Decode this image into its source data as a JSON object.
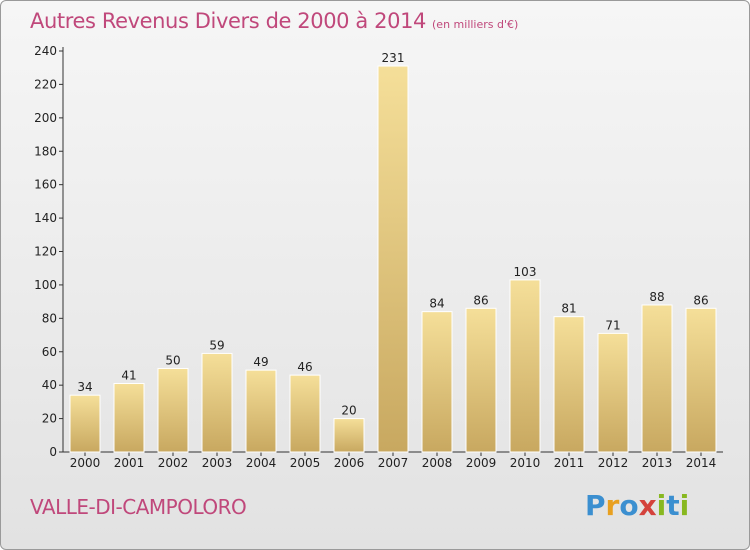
{
  "title": "Autres Revenus Divers de 2000 à 2014",
  "subtitle": "(en milliers d'€)",
  "place": "VALLE-DI-CAMPOLORO",
  "logo": {
    "letters": [
      "P",
      "r",
      "o",
      "x",
      "i",
      "t",
      "i"
    ],
    "colors": [
      "#3b8fd0",
      "#e8a020",
      "#3b8fd0",
      "#d4423c",
      "#88b820",
      "#3b8fd0",
      "#88b820"
    ]
  },
  "colors": {
    "accent": "#c0487b",
    "bar_light": "#f5df99",
    "bar_dark": "#c8a860"
  },
  "chart_data": {
    "type": "bar",
    "title": "Autres Revenus Divers de 2000 à 2014",
    "categories": [
      "2000",
      "2001",
      "2002",
      "2003",
      "2004",
      "2005",
      "2006",
      "2007",
      "2008",
      "2009",
      "2010",
      "2011",
      "2012",
      "2013",
      "2014"
    ],
    "values": [
      34,
      41,
      50,
      59,
      49,
      46,
      20,
      231,
      84,
      86,
      103,
      81,
      71,
      88,
      86
    ],
    "ylim": [
      0,
      240
    ],
    "yticks": [
      0,
      20,
      40,
      60,
      80,
      100,
      120,
      140,
      160,
      180,
      200,
      220,
      240
    ],
    "grid": false,
    "data_labels": true
  }
}
